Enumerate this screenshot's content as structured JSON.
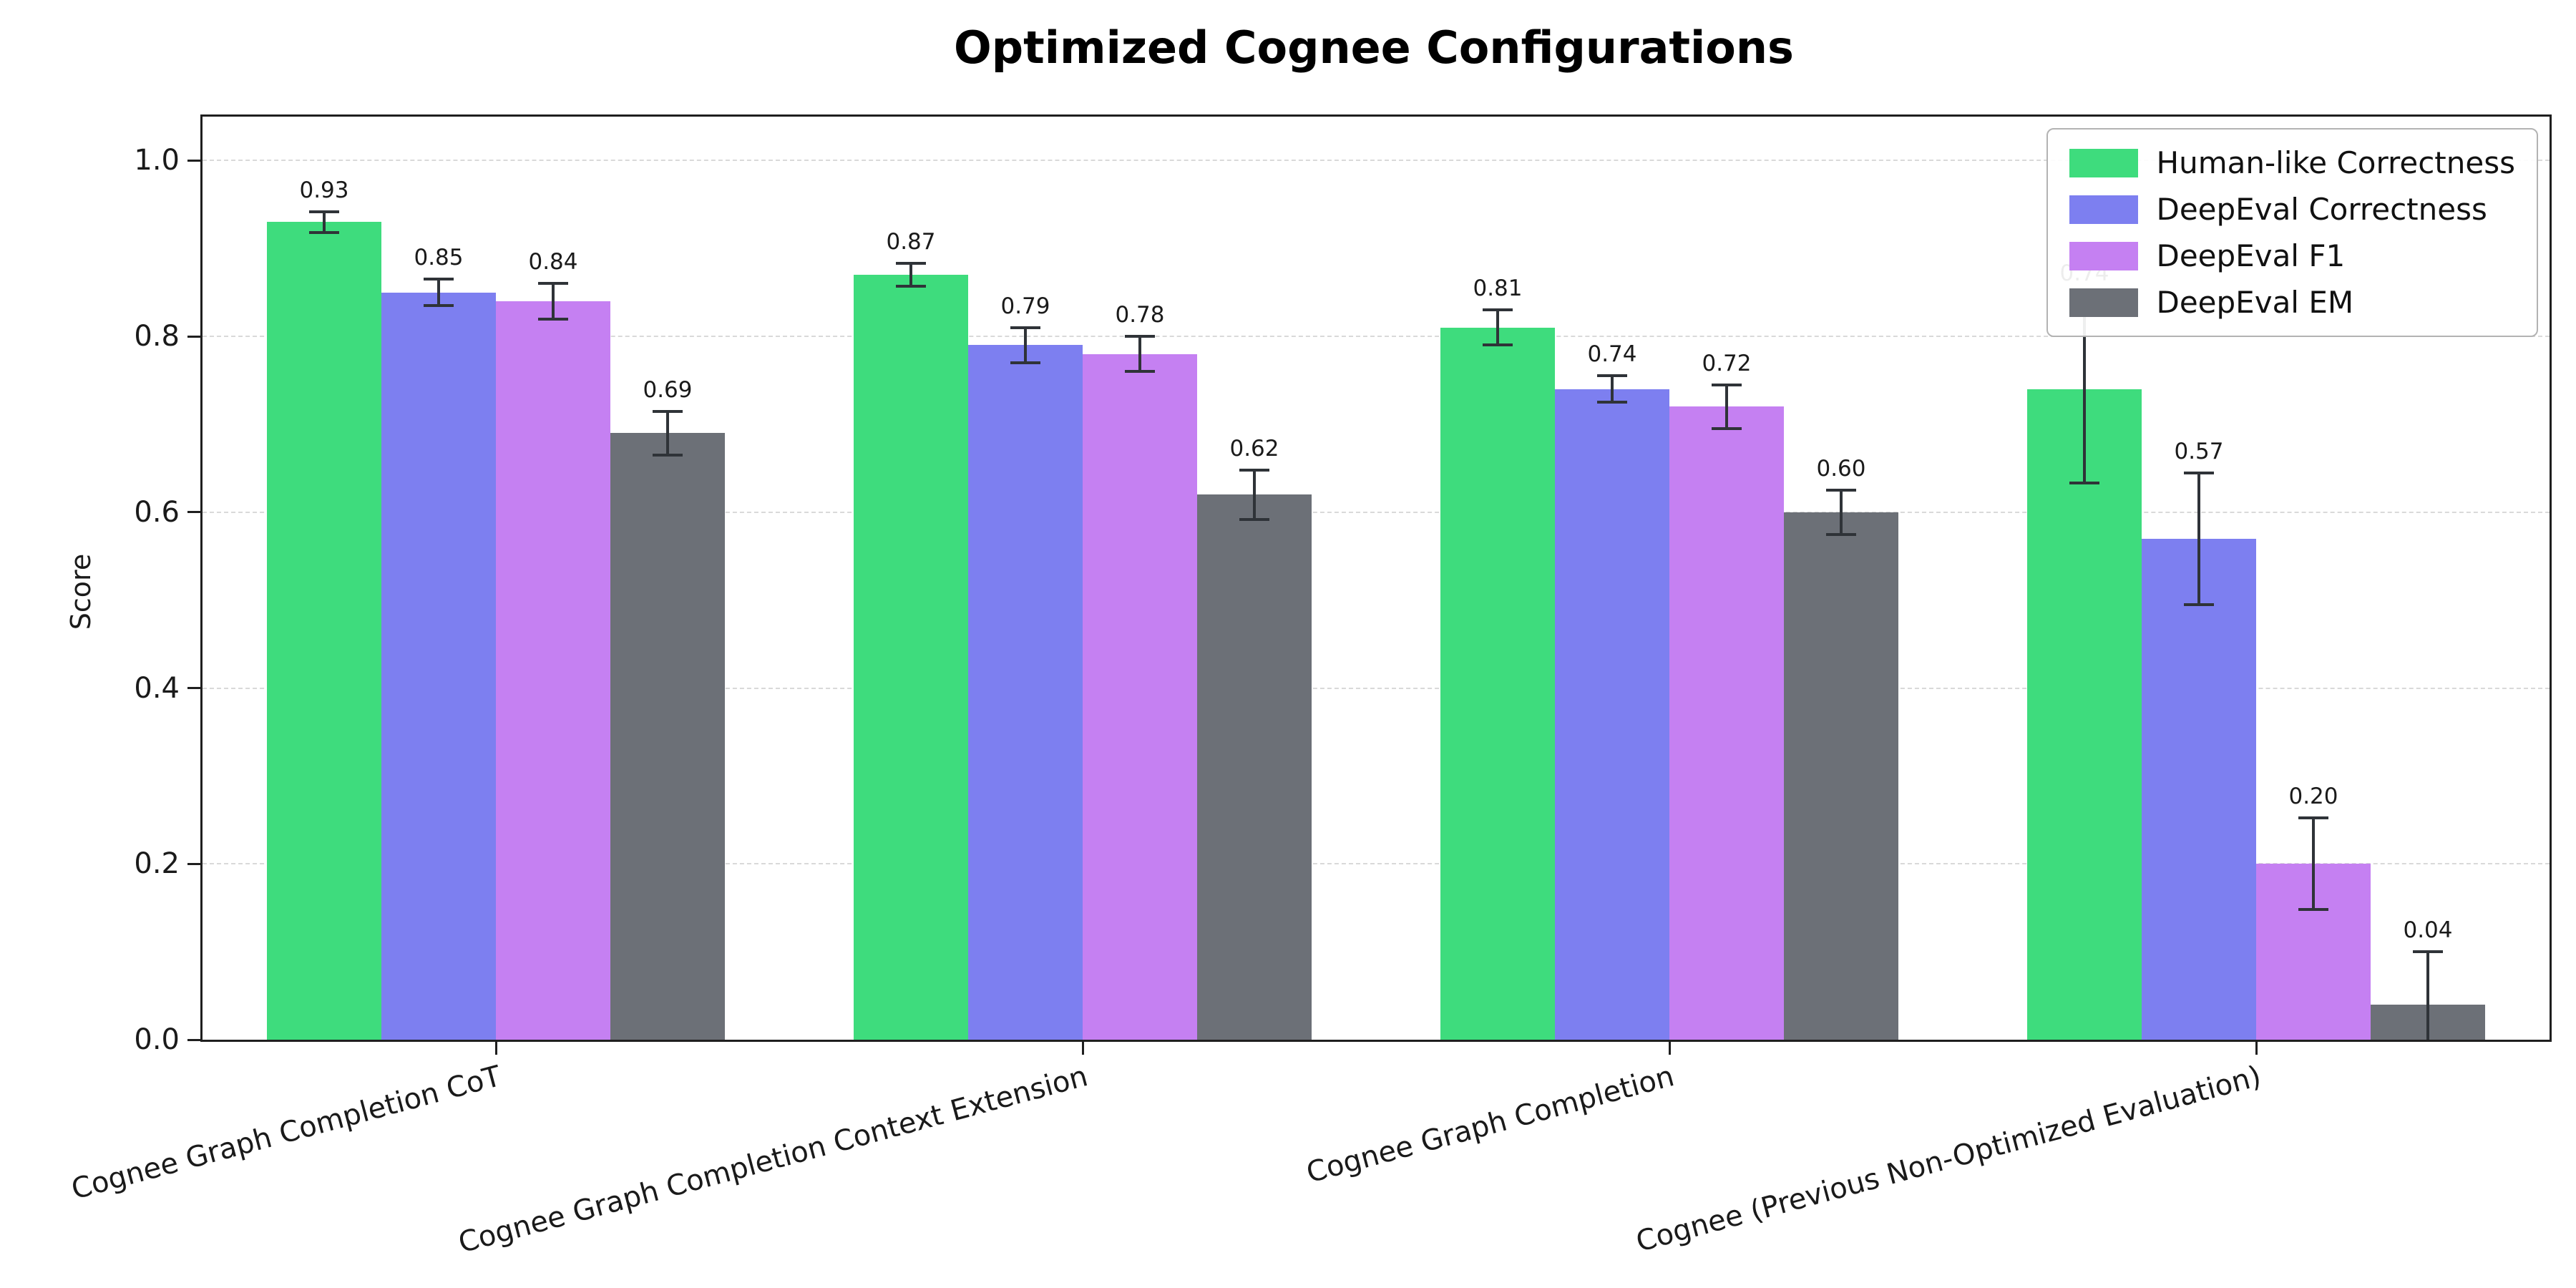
{
  "chart_data": {
    "type": "bar",
    "title": "Optimized Cognee Configurations",
    "ylabel": "Score",
    "xlabel": "",
    "ylim": [
      0,
      1.05
    ],
    "yticks": [
      0.0,
      0.2,
      0.4,
      0.6,
      0.8,
      1.0
    ],
    "grid": "horizontal dashed gridlines",
    "legend_position": "upper right",
    "error_bars": true,
    "categories": [
      "Cognee Graph Completion CoT",
      "Cognee Graph Completion Context Extension",
      "Cognee Graph Completion",
      "Cognee (Previous Non-Optimized Evaluation)"
    ],
    "series": [
      {
        "name": "Human-like Correctness",
        "color": "#3edc7d",
        "values": [
          0.93,
          0.87,
          0.81,
          0.74
        ],
        "errors": [
          0.012,
          0.013,
          0.02,
          0.107
        ]
      },
      {
        "name": "DeepEval Correctness",
        "color": "#7d7ff0",
        "values": [
          0.85,
          0.79,
          0.74,
          0.57
        ],
        "errors": [
          0.015,
          0.02,
          0.015,
          0.075
        ]
      },
      {
        "name": "DeepEval F1",
        "color": "#c580f2",
        "values": [
          0.84,
          0.78,
          0.72,
          0.2
        ],
        "errors": [
          0.02,
          0.02,
          0.025,
          0.052
        ]
      },
      {
        "name": "DeepEval EM",
        "color": "#6c7077",
        "values": [
          0.69,
          0.62,
          0.6,
          0.04
        ],
        "errors": [
          0.025,
          0.028,
          0.025,
          0.06
        ]
      }
    ]
  }
}
